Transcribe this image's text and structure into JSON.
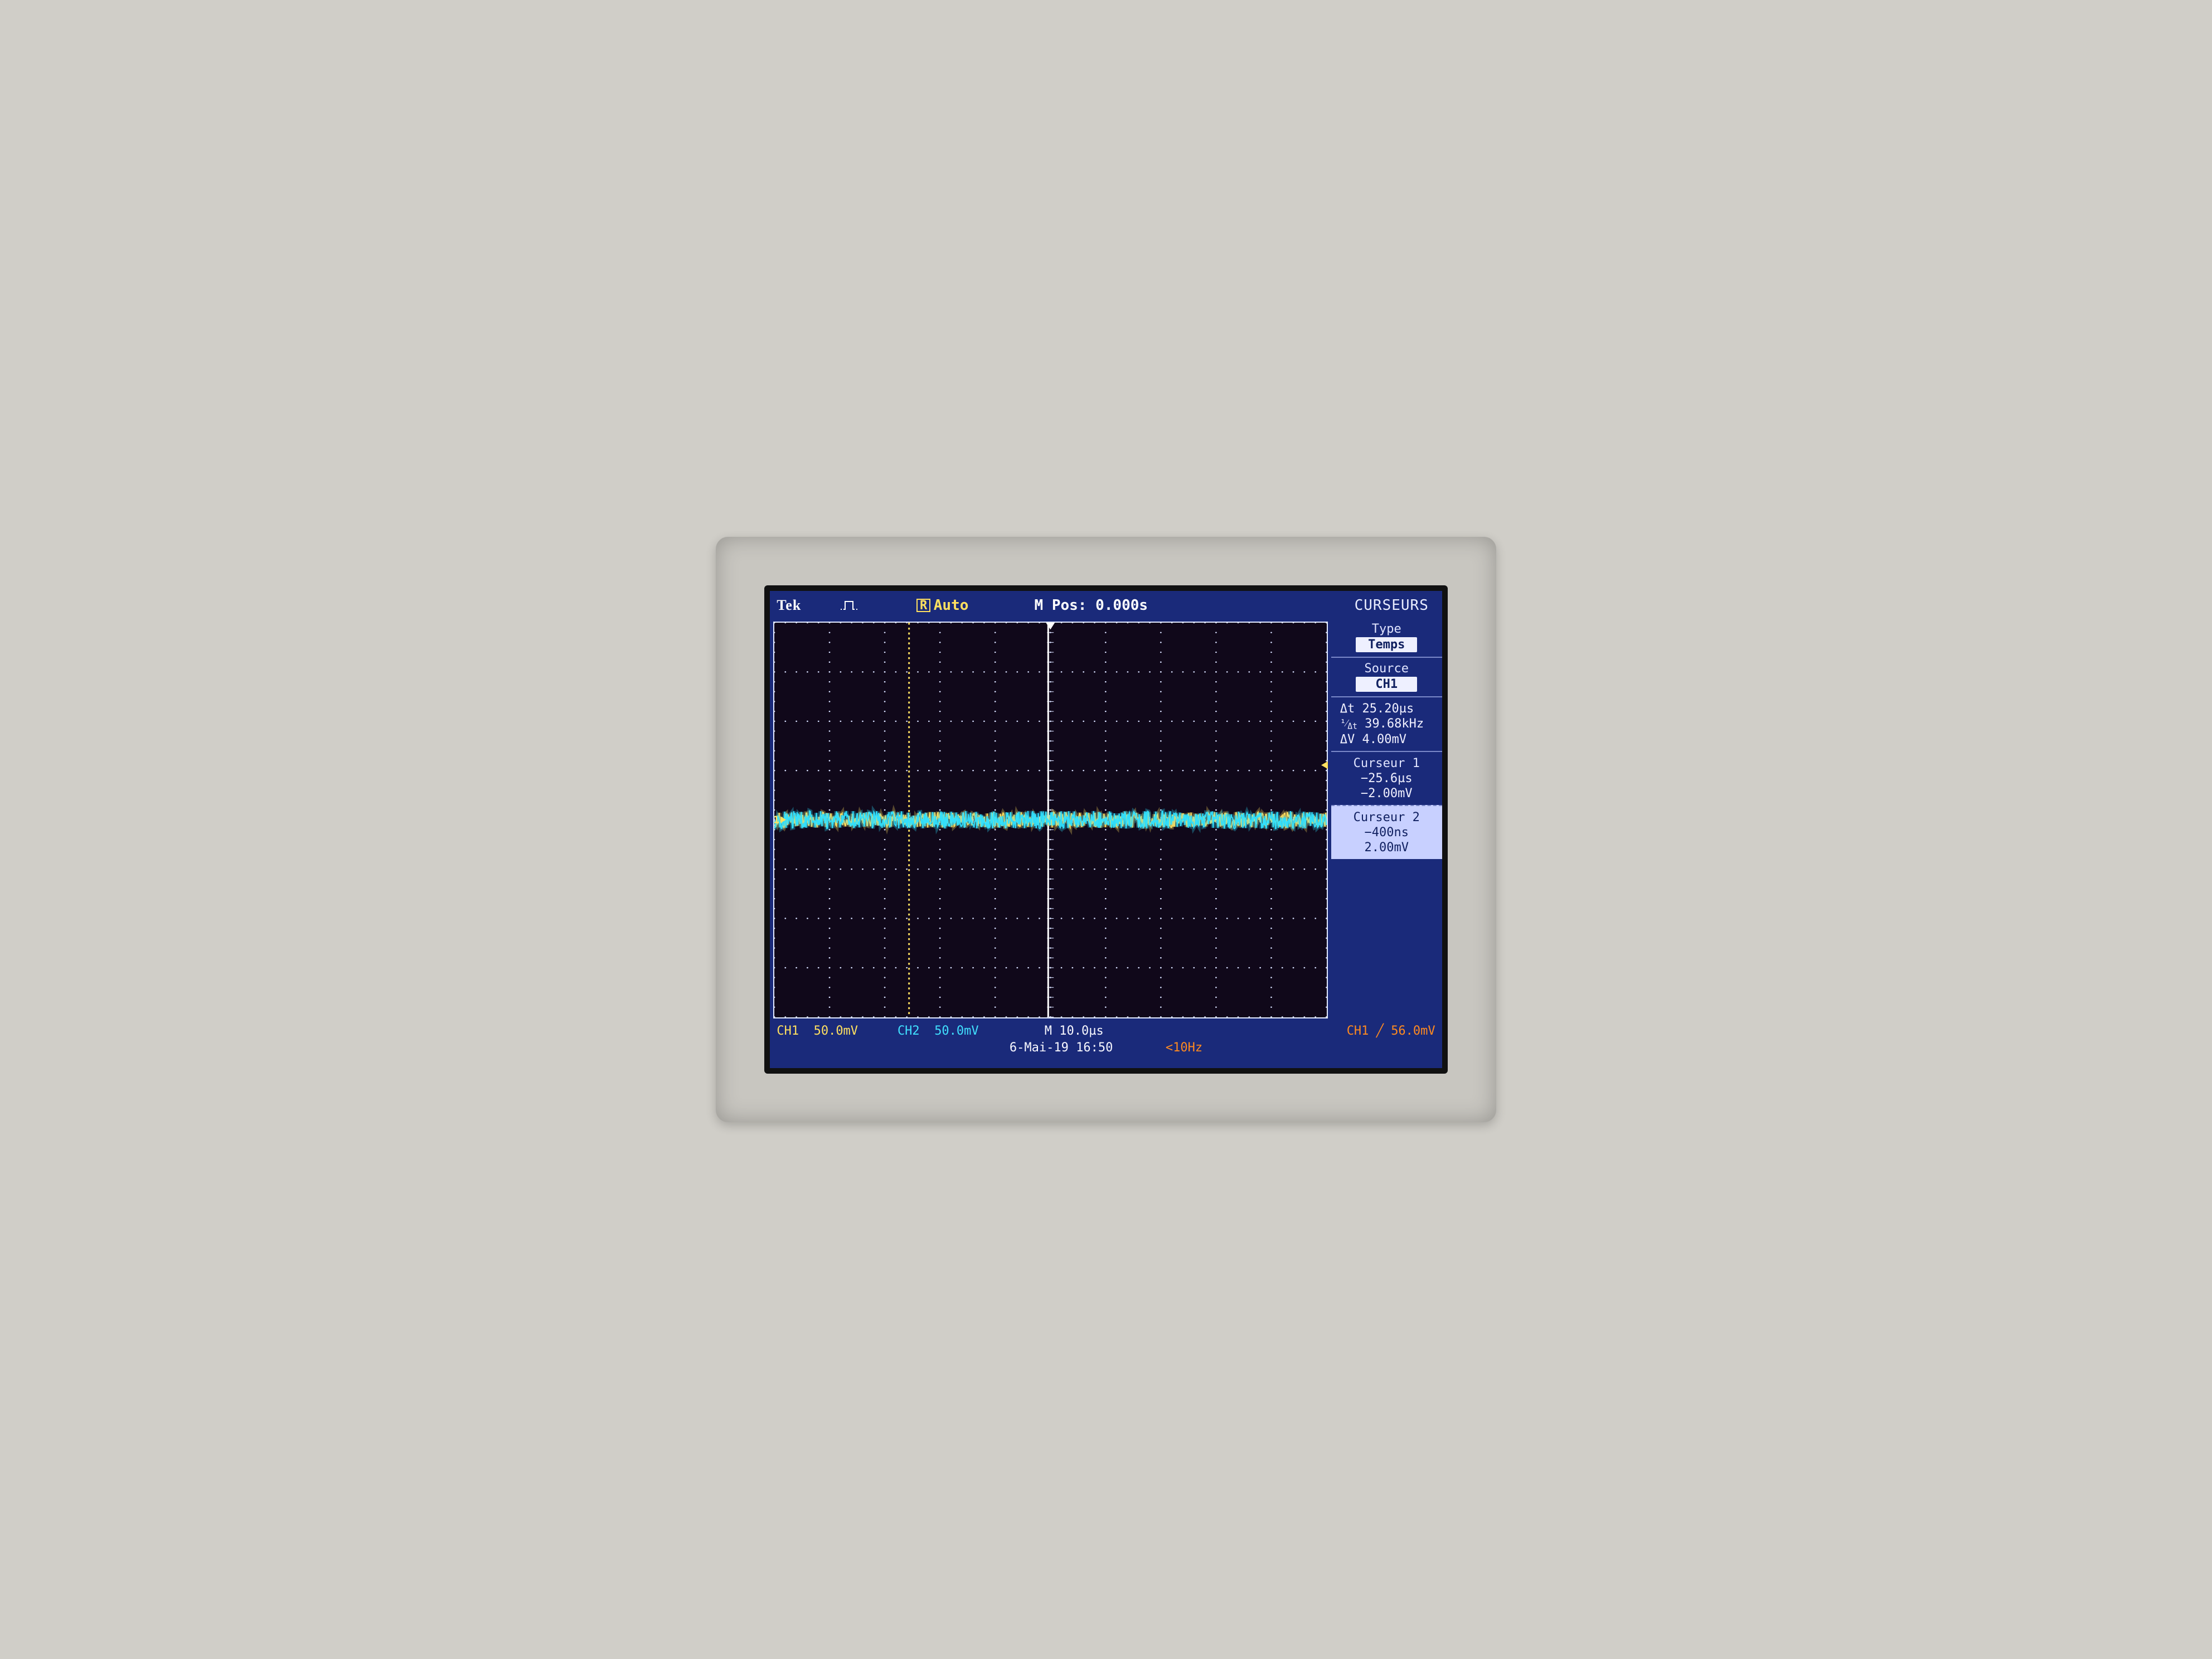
{
  "brand": "Tek",
  "trigger_mode_badge": "R",
  "trigger_mode": "Auto",
  "m_pos_label": "M Pos:",
  "m_pos_value": "0.000s",
  "menu_title": "CURSEURS",
  "sidebar": {
    "type_label": "Type",
    "type_value": "Temps",
    "source_label": "Source",
    "source_value": "CH1",
    "measurements": {
      "dt_label": "Δt",
      "dt_value": "25.20µs",
      "freq_label": "1/Δt",
      "freq_value": "39.68kHz",
      "dv_label": "ΔV",
      "dv_value": "4.00mV"
    },
    "cursor1": {
      "title": "Curseur 1",
      "time": "−25.6µs",
      "volt": "−2.00mV"
    },
    "cursor2": {
      "title": "Curseur 2",
      "time": "−400ns",
      "volt": "2.00mV"
    }
  },
  "bottom": {
    "ch1_label": "CH1",
    "ch1_scale": "50.0mV",
    "ch2_label": "CH2",
    "ch2_scale": "50.0mV",
    "time_label": "M",
    "time_scale": "10.0µs",
    "trig_src": "CH1",
    "trig_edge": "╱",
    "trig_level": "56.0mV",
    "date": "6-Mai-19 16:50",
    "freq_readout": "<10Hz"
  },
  "waveform": {
    "type": "oscilloscope",
    "grid": {
      "h_divisions": 10,
      "v_divisions": 8,
      "minor_ticks_per_div": 5,
      "border_color": "#e0e8ff",
      "dot_color": "#d8e0ff",
      "background_color": "#10081a"
    },
    "cursors": {
      "cursor1_x_div": 2.44,
      "cursor2_x_div": 4.96,
      "cursor1_color": "#ffe060",
      "cursor2_color": "#ffffff"
    },
    "channels": [
      {
        "name": "CH2",
        "marker_label": "2",
        "color": "#30e0ff",
        "zero_y_div": 4.0,
        "noise_amplitude_div": 0.18
      },
      {
        "name": "CH1",
        "marker_label": "1",
        "color": "#ffe060",
        "zero_y_div": 4.0,
        "noise_amplitude_div": 0.16
      }
    ],
    "trigger_marker_y_div": 2.9,
    "center_indicator_x_div": 5.0
  },
  "colors": {
    "screen_bg": "#1a2a7a",
    "ch1": "#ffe060",
    "ch2": "#40e0ff",
    "text": "#f8f8ff",
    "sidebar_sel_bg": "#c8d0ff"
  }
}
